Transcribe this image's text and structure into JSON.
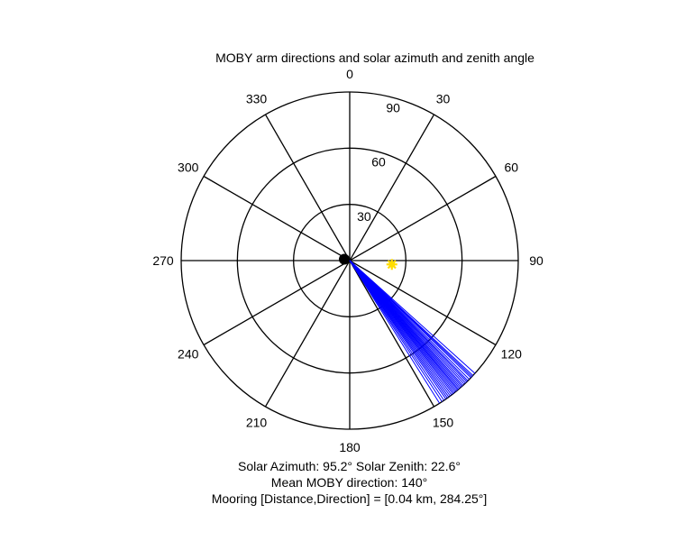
{
  "chart_data": {
    "type": "polar",
    "title": "MOBY arm directions and solar azimuth and zenith angle",
    "angle_ticks": [
      {
        "angle": 0,
        "label": "0"
      },
      {
        "angle": 30,
        "label": "30"
      },
      {
        "angle": 60,
        "label": "60"
      },
      {
        "angle": 90,
        "label": "90"
      },
      {
        "angle": 120,
        "label": "120"
      },
      {
        "angle": 150,
        "label": "150"
      },
      {
        "angle": 180,
        "label": "180"
      },
      {
        "angle": 210,
        "label": "210"
      },
      {
        "angle": 240,
        "label": "240"
      },
      {
        "angle": 270,
        "label": "270"
      },
      {
        "angle": 300,
        "label": "300"
      },
      {
        "angle": 330,
        "label": "330"
      }
    ],
    "radial_ticks": [
      {
        "value": 30,
        "label": "30"
      },
      {
        "value": 60,
        "label": "60"
      },
      {
        "value": 90,
        "label": "90"
      }
    ],
    "rmax": 90,
    "arm_directions": {
      "color": "#0000ff",
      "radius": 90,
      "angles": [
        132.0,
        133.0,
        133.5,
        134.0,
        134.8,
        135.5,
        136.0,
        136.6,
        137.2,
        137.8,
        138.3,
        138.8,
        139.3,
        139.8,
        140.2,
        140.7,
        141.2,
        141.7,
        142.2,
        142.8,
        143.4,
        144.0,
        144.6,
        145.2,
        146.0,
        146.8,
        147.8
      ]
    },
    "sun": {
      "azimuth": 95.2,
      "zenith": 22.6,
      "color": "#ffdd00"
    },
    "mooring": {
      "distance_km": 0.04,
      "direction": 284.25,
      "color": "#000000"
    },
    "captions": {
      "line1": "Solar Azimuth: 95.2°    Solar Zenith: 22.6°",
      "line2": "Mean MOBY direction: 140°",
      "line3": "Mooring [Distance,Direction] = [0.04 km, 284.25°]"
    }
  }
}
